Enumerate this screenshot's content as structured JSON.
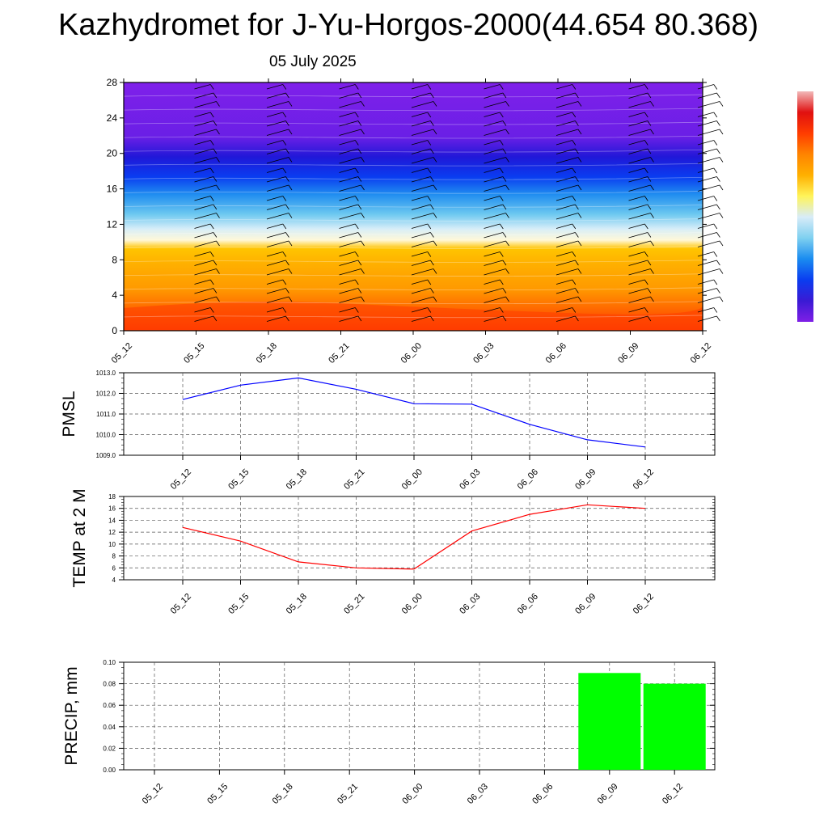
{
  "title": "Kazhydromet for J-Yu-Horgos-2000(44.654 80.368)",
  "subtitle": "05 July 2025",
  "chart_data": [
    {
      "type": "heatmap",
      "description_role": "vertical time section",
      "ylim": [
        0,
        28
      ],
      "yticks": [
        "0",
        "4",
        "8",
        "12",
        "16",
        "20",
        "24",
        "28"
      ],
      "xticks": [
        "05_12",
        "05_15",
        "05_18",
        "05_21",
        "06_00",
        "06_03",
        "06_06",
        "06_09",
        "06_12"
      ],
      "colorbar": [
        "#7f1fe6",
        "#3a1ad4",
        "#0a3df0",
        "#1a8cf0",
        "#7fd0f0",
        "#d8ecf8",
        "#fff45a",
        "#ffb000",
        "#ff8400",
        "#ff3c00",
        "#e01010",
        "#f2b8b8"
      ]
    },
    {
      "type": "line",
      "ylabel": "PMSL",
      "x": [
        "05_12",
        "05_15",
        "05_18",
        "05_21",
        "06_00",
        "06_03",
        "06_06",
        "06_09",
        "06_12"
      ],
      "series": [
        {
          "values": [
            1011.7,
            1012.4,
            1012.75,
            1012.2,
            1011.5,
            1011.48,
            1010.5,
            1009.75,
            1009.4
          ],
          "color": "#0000ff"
        }
      ],
      "ylim": [
        1009.0,
        1013.0
      ],
      "ytick_labels": [
        "1009.0",
        "1010.0",
        "1011.0",
        "1012.0",
        "1013.0"
      ],
      "grid": true
    },
    {
      "type": "line",
      "ylabel": "TEMP at 2 M",
      "x": [
        "05_12",
        "05_15",
        "05_18",
        "05_21",
        "06_00",
        "06_03",
        "06_06",
        "06_09",
        "06_12"
      ],
      "series": [
        {
          "values": [
            12.8,
            10.5,
            7.0,
            6.0,
            5.8,
            12.2,
            15.0,
            16.6,
            16.0
          ],
          "color": "#ff0000"
        }
      ],
      "ylim": [
        4,
        18
      ],
      "ytick_labels": [
        "4",
        "6",
        "8",
        "10",
        "12",
        "14",
        "16",
        "18"
      ],
      "grid": true
    },
    {
      "type": "bar",
      "ylabel": "PRECIP, mm",
      "categories": [
        "05_12",
        "05_15",
        "05_18",
        "05_21",
        "06_00",
        "06_03",
        "06_06",
        "06_09",
        "06_12"
      ],
      "values": [
        0,
        0,
        0,
        0,
        0,
        0,
        0,
        0.09,
        0.08
      ],
      "color": "#00ff00",
      "ylim": [
        0,
        0.1
      ],
      "ytick_labels": [
        "0.00",
        "0.02",
        "0.04",
        "0.06",
        "0.08",
        "0.10"
      ],
      "grid": true
    }
  ]
}
